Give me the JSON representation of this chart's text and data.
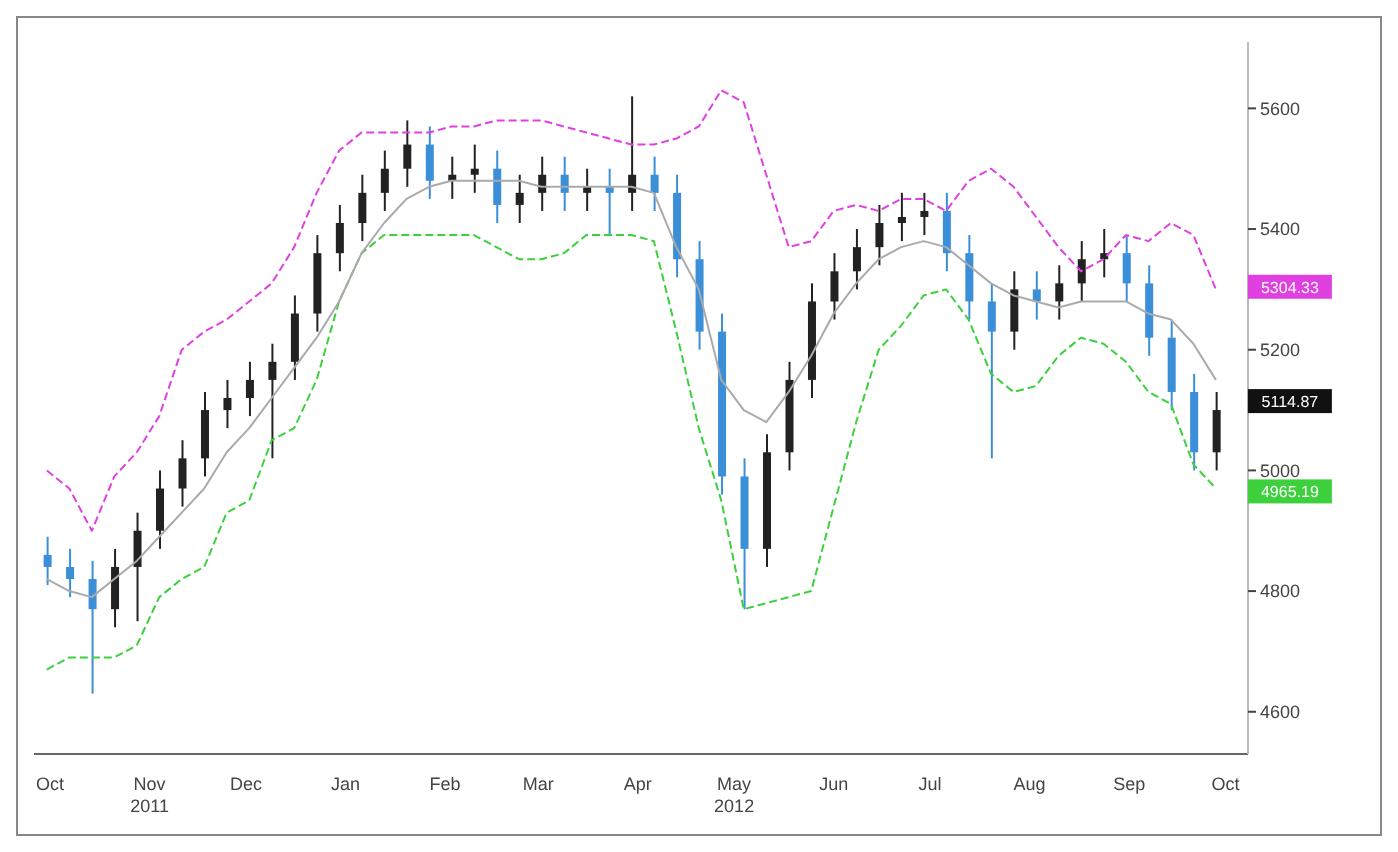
{
  "chart_data": {
    "type": "candlestick",
    "x": [
      "2011-10-14",
      "2011-10-21",
      "2011-10-28",
      "2011-11-04",
      "2011-11-11",
      "2011-11-18",
      "2011-11-25",
      "2011-12-02",
      "2011-12-09",
      "2011-12-16",
      "2011-12-23",
      "2011-12-30",
      "2012-01-06",
      "2012-01-13",
      "2012-01-20",
      "2012-01-27",
      "2012-02-03",
      "2012-02-10",
      "2012-02-17",
      "2012-02-24",
      "2012-03-02",
      "2012-03-09",
      "2012-03-16",
      "2012-03-23",
      "2012-03-30",
      "2012-04-06",
      "2012-04-13",
      "2012-04-20",
      "2012-04-27",
      "2012-05-04",
      "2012-05-11",
      "2012-05-18",
      "2012-05-25",
      "2012-06-01",
      "2012-06-08",
      "2012-06-15",
      "2012-06-22",
      "2012-06-29",
      "2012-07-06",
      "2012-07-13",
      "2012-07-20",
      "2012-07-27",
      "2012-08-03",
      "2012-08-10",
      "2012-08-17",
      "2012-08-24",
      "2012-08-31",
      "2012-09-07",
      "2012-09-14",
      "2012-09-21",
      "2012-09-28",
      "2012-10-05",
      "2012-10-12"
    ],
    "series": [
      {
        "color": "#111111",
        "ohlc": [
          [
            4860,
            4890,
            4810,
            4840
          ],
          [
            4840,
            4870,
            4790,
            4820
          ],
          [
            4820,
            4850,
            4630,
            4770
          ],
          [
            4770,
            4870,
            4740,
            4840
          ],
          [
            4840,
            4930,
            4750,
            4900
          ],
          [
            4900,
            5000,
            4870,
            4970
          ],
          [
            4970,
            5050,
            4940,
            5020
          ],
          [
            5020,
            5130,
            4990,
            5100
          ],
          [
            5100,
            5150,
            5070,
            5120
          ],
          [
            5120,
            5180,
            5090,
            5150
          ],
          [
            5150,
            5210,
            5020,
            5180
          ],
          [
            5180,
            5290,
            5150,
            5260
          ],
          [
            5260,
            5390,
            5230,
            5360
          ],
          [
            5360,
            5440,
            5330,
            5410
          ],
          [
            5410,
            5490,
            5380,
            5460
          ],
          [
            5460,
            5530,
            5430,
            5500
          ],
          [
            5500,
            5580,
            5470,
            5540
          ],
          [
            5540,
            5570,
            5450,
            5480
          ],
          [
            5480,
            5520,
            5450,
            5490
          ],
          [
            5490,
            5540,
            5460,
            5500
          ],
          [
            5500,
            5530,
            5410,
            5440
          ],
          [
            5440,
            5490,
            5410,
            5460
          ],
          [
            5460,
            5520,
            5430,
            5490
          ],
          [
            5490,
            5520,
            5430,
            5460
          ],
          [
            5460,
            5500,
            5430,
            5470
          ],
          [
            5470,
            5500,
            5390,
            5460
          ],
          [
            5460,
            5620,
            5430,
            5490
          ],
          [
            5490,
            5520,
            5430,
            5460
          ],
          [
            5460,
            5490,
            5320,
            5350
          ],
          [
            5350,
            5380,
            5200,
            5230
          ],
          [
            5230,
            5260,
            4960,
            4990
          ],
          [
            4990,
            5020,
            4770,
            4870
          ],
          [
            4870,
            5060,
            4840,
            5030
          ],
          [
            5030,
            5180,
            5000,
            5150
          ],
          [
            5150,
            5310,
            5120,
            5280
          ],
          [
            5280,
            5360,
            5250,
            5330
          ],
          [
            5330,
            5400,
            5300,
            5370
          ],
          [
            5370,
            5440,
            5340,
            5410
          ],
          [
            5410,
            5460,
            5380,
            5420
          ],
          [
            5420,
            5460,
            5390,
            5430
          ],
          [
            5430,
            5460,
            5330,
            5360
          ],
          [
            5360,
            5390,
            5250,
            5280
          ],
          [
            5280,
            5310,
            5020,
            5230
          ],
          [
            5230,
            5330,
            5200,
            5300
          ],
          [
            5300,
            5330,
            5250,
            5280
          ],
          [
            5280,
            5340,
            5250,
            5310
          ],
          [
            5310,
            5380,
            5280,
            5350
          ],
          [
            5350,
            5400,
            5320,
            5360
          ],
          [
            5360,
            5390,
            5280,
            5310
          ],
          [
            5310,
            5340,
            5190,
            5220
          ],
          [
            5220,
            5250,
            5100,
            5130
          ],
          [
            5130,
            5160,
            5000,
            5030
          ],
          [
            5030,
            5130,
            5000,
            5100
          ]
        ],
        "colors": [
          "#3a8fd8",
          "#3a8fd8",
          "#3a8fd8",
          "#222222",
          "#222222",
          "#222222",
          "#222222",
          "#222222",
          "#222222",
          "#222222",
          "#222222",
          "#222222",
          "#222222",
          "#222222",
          "#222222",
          "#222222",
          "#222222",
          "#3a8fd8",
          "#222222",
          "#222222",
          "#3a8fd8",
          "#222222",
          "#222222",
          "#3a8fd8",
          "#222222",
          "#3a8fd8",
          "#222222",
          "#3a8fd8",
          "#3a8fd8",
          "#3a8fd8",
          "#3a8fd8",
          "#3a8fd8",
          "#222222",
          "#222222",
          "#222222",
          "#222222",
          "#222222",
          "#222222",
          "#222222",
          "#222222",
          "#3a8fd8",
          "#3a8fd8",
          "#3a8fd8",
          "#222222",
          "#3a8fd8",
          "#222222",
          "#222222",
          "#222222",
          "#3a8fd8",
          "#3a8fd8",
          "#3a8fd8",
          "#3a8fd8",
          "#222222"
        ]
      },
      {
        "type": "line",
        "color": "#e040e0",
        "line_style": "dashed",
        "values": [
          5000,
          4970,
          4900,
          4990,
          5030,
          5090,
          5200,
          5230,
          5250,
          5280,
          5310,
          5370,
          5460,
          5530,
          5560,
          5560,
          5560,
          5560,
          5570,
          5570,
          5580,
          5580,
          5580,
          5570,
          5560,
          5550,
          5540,
          5540,
          5550,
          5570,
          5630,
          5610,
          5490,
          5370,
          5380,
          5430,
          5440,
          5430,
          5450,
          5450,
          5430,
          5480,
          5500,
          5470,
          5420,
          5370,
          5330,
          5350,
          5390,
          5380,
          5410,
          5390,
          5300
        ]
      },
      {
        "type": "line",
        "color": "#3cd03c",
        "line_style": "dashed",
        "values": [
          4670,
          4690,
          4690,
          4690,
          4710,
          4790,
          4820,
          4840,
          4930,
          4950,
          5050,
          5070,
          5150,
          5280,
          5360,
          5390,
          5390,
          5390,
          5390,
          5390,
          5370,
          5350,
          5350,
          5360,
          5390,
          5390,
          5390,
          5380,
          5230,
          5070,
          4950,
          4770,
          4780,
          4790,
          4800,
          4940,
          5080,
          5200,
          5240,
          5290,
          5300,
          5250,
          5160,
          5130,
          5140,
          5190,
          5220,
          5210,
          5180,
          5130,
          5110,
          5010,
          4970
        ]
      },
      {
        "type": "line",
        "color": "#aaaaaa",
        "line_style": "solid",
        "values": [
          4820,
          4800,
          4790,
          4820,
          4850,
          4890,
          4930,
          4970,
          5030,
          5070,
          5120,
          5170,
          5220,
          5280,
          5360,
          5410,
          5450,
          5470,
          5480,
          5480,
          5480,
          5480,
          5470,
          5470,
          5470,
          5470,
          5470,
          5460,
          5370,
          5300,
          5150,
          5100,
          5080,
          5130,
          5190,
          5260,
          5310,
          5350,
          5370,
          5380,
          5370,
          5340,
          5310,
          5290,
          5280,
          5270,
          5280,
          5280,
          5280,
          5260,
          5250,
          5210,
          5150
        ]
      }
    ],
    "annotations": [
      {
        "text": "5114.87",
        "x": "2012-10-12",
        "y": 5114.87
      },
      {
        "text": "5304.33",
        "x": "2012-10-12",
        "y": 5304.33
      },
      {
        "text": "4965.19",
        "x": "2012-10-12",
        "y": 4965.19
      }
    ],
    "xlim": [
      "2011-10-10",
      "2012-10-22"
    ],
    "xticks": [
      {
        "value": "2011-10-15",
        "label": "Oct"
      },
      {
        "value": "2011-11-15",
        "label": "Nov\n2011"
      },
      {
        "value": "2011-12-15",
        "label": "Dec"
      },
      {
        "value": "2012-01-15",
        "label": "Jan"
      },
      {
        "value": "2012-02-15",
        "label": "Feb"
      },
      {
        "value": "2012-03-15",
        "label": "Mar"
      },
      {
        "value": "2012-04-15",
        "label": "Apr"
      },
      {
        "value": "2012-05-15",
        "label": "May\n2012"
      },
      {
        "value": "2012-06-15",
        "label": "Jun"
      },
      {
        "value": "2012-07-15",
        "label": "Jul"
      },
      {
        "value": "2012-08-15",
        "label": "Aug"
      },
      {
        "value": "2012-09-15",
        "label": "Sep"
      },
      {
        "value": "2012-10-15",
        "label": "Oct"
      }
    ],
    "ylim": [
      4530,
      5710
    ],
    "yticks": [
      4600,
      4800,
      5000,
      5200,
      5400,
      5600
    ],
    "grid": false,
    "legend": false
  }
}
